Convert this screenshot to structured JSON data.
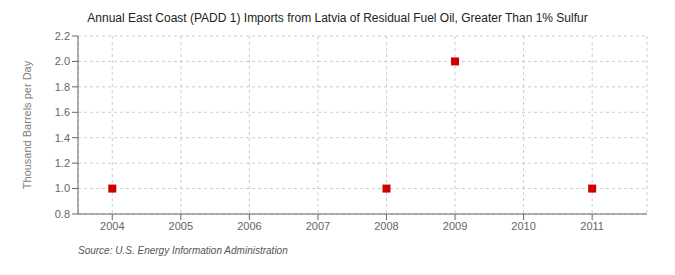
{
  "chart_data": {
    "type": "scatter",
    "title": "Annual East Coast (PADD 1) Imports from Latvia of Residual Fuel Oil, Greater Than 1% Sulfur",
    "ylabel": "Thousand Barrels per Day",
    "annotations": [
      "Source: U.S. Energy Information Administration"
    ],
    "x": [
      2004,
      2008,
      2009,
      2011
    ],
    "values": [
      1.0,
      1.0,
      2.0,
      1.0
    ],
    "color": "#CC0000",
    "marker": "square",
    "xlim": [
      2003.5,
      2011.8
    ],
    "ylim": [
      0.8,
      2.2
    ],
    "xticks": [
      2004,
      2005,
      2006,
      2007,
      2008,
      2009,
      2010,
      2011
    ],
    "yticks": [
      0.8,
      {
        "value": 1.0,
        "label": "1.0"
      },
      1.2,
      1.4,
      1.6,
      1.8,
      {
        "value": 2.0,
        "label": "2.0"
      },
      2.2
    ],
    "grid": true
  }
}
